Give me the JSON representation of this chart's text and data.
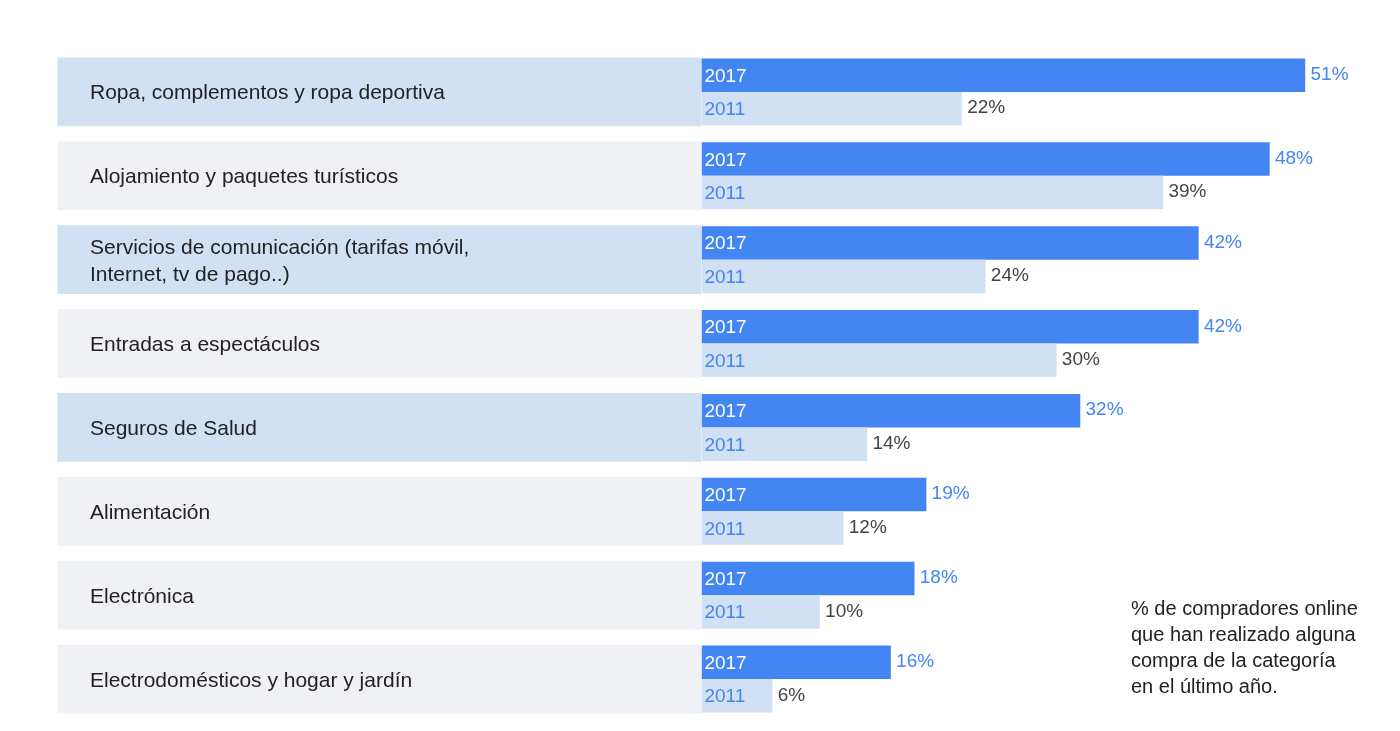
{
  "chart_data": {
    "type": "bar",
    "orientation": "horizontal",
    "categories": [
      "Ropa, complementos y ropa deportiva",
      "Alojamiento y paquetes turísticos",
      "Servicios de comunicación (tarifas móvil, Internet, tv de pago..)",
      "Entradas a espectáculos",
      "Seguros de Salud",
      "Alimentación",
      "Electrónica",
      "Electrodomésticos y hogar y jardín"
    ],
    "series": [
      {
        "name": "2017",
        "color": "#4485f4",
        "values": [
          51,
          48,
          42,
          42,
          32,
          19,
          18,
          16
        ],
        "value_labels": [
          "51%",
          "48%",
          "42%",
          "42%",
          "32%",
          "19%",
          "18%",
          "16%"
        ]
      },
      {
        "name": "2011",
        "color": "#d1e1f3",
        "values": [
          22,
          39,
          24,
          30,
          14,
          12,
          10,
          6
        ],
        "value_labels": [
          "22%",
          "39%",
          "24%",
          "30%",
          "14%",
          "12%",
          "10%",
          "6%"
        ]
      }
    ],
    "annotations": [
      "% de compradores online que han realizado alguna compra de la categoría en el último año."
    ],
    "legend": false
  }
}
